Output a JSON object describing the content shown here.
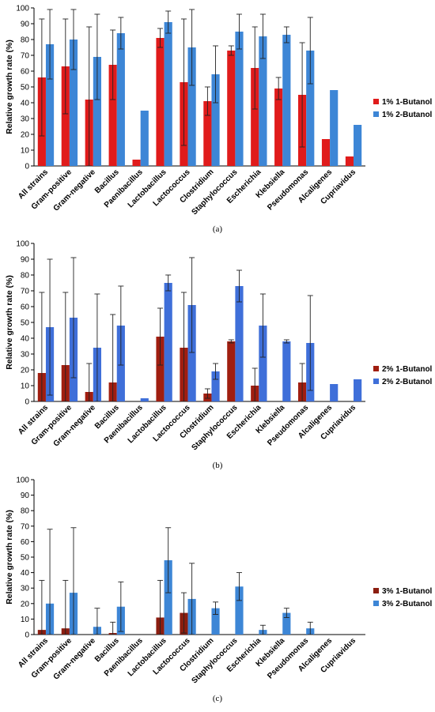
{
  "chart_data": [
    {
      "type": "bar",
      "panel_label": "(a)",
      "ylabel": "Relative growth rate (%)",
      "ylim": [
        0,
        100
      ],
      "ytick_step": 10,
      "categories": [
        "All strains",
        "Gram-positive",
        "Gram-negative",
        "Bacillus",
        "Paenibacillus",
        "Lactobacillus",
        "Lactococcus",
        "Clostridium",
        "Staphylococcus",
        "Escherichia",
        "Klebsiella",
        "Pseudomonas",
        "Alcaligenes",
        "Cupriavidus"
      ],
      "series": [
        {
          "name": "1% 1-Butanol",
          "color": "#e01b1b",
          "values": [
            56,
            63,
            42,
            64,
            4,
            81,
            53,
            41,
            73,
            62,
            49,
            45,
            17,
            6
          ],
          "errors": [
            37,
            30,
            46,
            22,
            0,
            6,
            40,
            9,
            3,
            26,
            7,
            33,
            0,
            0
          ]
        },
        {
          "name": "1% 2-Butanol",
          "color": "#3d86d6",
          "values": [
            77,
            80,
            69,
            84,
            35,
            91,
            75,
            58,
            85,
            82,
            83,
            73,
            48,
            26
          ],
          "errors": [
            22,
            19,
            27,
            10,
            0,
            7,
            24,
            18,
            11,
            14,
            5,
            21,
            0,
            0
          ]
        }
      ],
      "legend_position": "right"
    },
    {
      "type": "bar",
      "panel_label": "(b)",
      "ylabel": "Relative growth rate (%)",
      "ylim": [
        0,
        100
      ],
      "ytick_step": 10,
      "categories": [
        "All strains",
        "Gram-positive",
        "Gram-negative",
        "Bacillus",
        "Paenibacillus",
        "Lactobacillus",
        "Lactococcus",
        "Clostridium",
        "Staphylococcus",
        "Escherichia",
        "Klebsiella",
        "Pseudomonas",
        "Alcaligenes",
        "Cupriavidus"
      ],
      "series": [
        {
          "name": "2% 1-Butanol",
          "color": "#a01e10",
          "values": [
            18,
            23,
            6,
            12,
            0,
            41,
            34,
            5,
            38,
            10,
            0,
            12,
            0,
            0
          ],
          "errors": [
            51,
            46,
            18,
            43,
            0,
            18,
            35,
            3,
            1,
            11,
            0,
            12,
            0,
            0
          ]
        },
        {
          "name": "2% 2-Butanol",
          "color": "#3f6fd9",
          "values": [
            47,
            53,
            34,
            48,
            2,
            75,
            61,
            19,
            73,
            48,
            38,
            37,
            11,
            14
          ],
          "errors": [
            43,
            38,
            34,
            25,
            0,
            5,
            30,
            5,
            10,
            20,
            1,
            30,
            0,
            0
          ]
        }
      ],
      "legend_position": "right"
    },
    {
      "type": "bar",
      "panel_label": "(c)",
      "ylabel": "Relative growth rate (%)",
      "ylim": [
        0,
        100
      ],
      "ytick_step": 10,
      "categories": [
        "All strains",
        "Gram-positive",
        "Gram-negative",
        "Bacillus",
        "Paenibacillus",
        "Lactobacillus",
        "Lactococcus",
        "Clostridium",
        "Staphylococcus",
        "Escherichia",
        "Klebsiella",
        "Pseudomonas",
        "Alcaligenes",
        "Cupriavidus"
      ],
      "series": [
        {
          "name": "3% 1-Butanol",
          "color": "#8b1d10",
          "values": [
            3,
            4,
            0,
            1,
            0,
            11,
            14,
            0,
            0,
            0,
            0,
            0,
            0,
            0
          ],
          "errors": [
            32,
            31,
            0,
            7,
            0,
            24,
            13,
            0,
            0,
            0,
            0,
            0,
            0,
            0
          ]
        },
        {
          "name": "3% 2-Butanol",
          "color": "#3d86d6",
          "values": [
            20,
            27,
            5,
            18,
            0,
            48,
            23,
            17,
            31,
            3,
            14,
            4,
            0,
            0
          ],
          "errors": [
            48,
            42,
            12,
            16,
            0,
            21,
            23,
            4,
            9,
            3,
            3,
            4,
            0,
            0
          ]
        }
      ],
      "legend_position": "right"
    }
  ]
}
